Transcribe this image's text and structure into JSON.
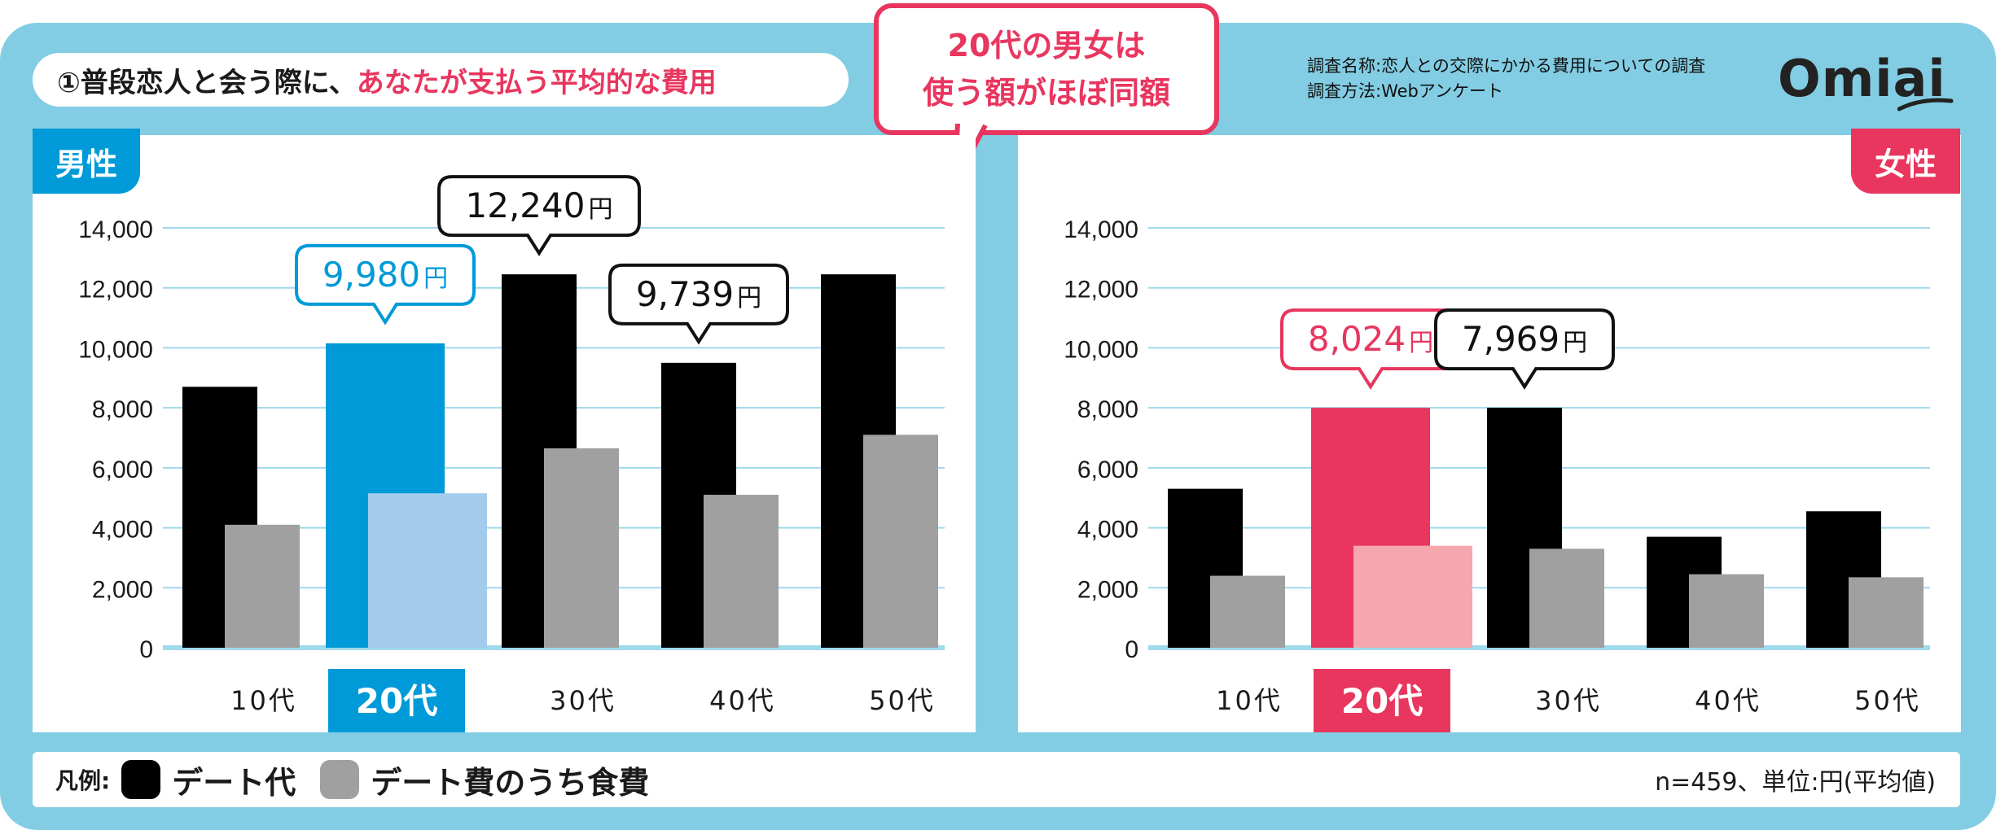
{
  "header": {
    "title_prefix": "①普段恋人と会う際に、",
    "title_highlight": "あなたが支払う平均的な費用",
    "callout_line1": "20代の男女は",
    "callout_line2": "使う額がほぼ同額",
    "survey_name": "調査名称:恋人との交際にかかる費用についての調査",
    "survey_method": "調査方法:Webアンケート",
    "logo": "Omiai"
  },
  "colors": {
    "frame": "#82cde3",
    "male_accent": "#009ad8",
    "male_light": "#a3ccec",
    "female_accent": "#e8365f",
    "female_light": "#f5a7ad",
    "date_cost": "#000000",
    "food_cost": "#a0a0a0",
    "gridline": "#9fd9ea"
  },
  "legend": {
    "label": "凡例:",
    "items": [
      "デート代",
      "デート費のうち食費"
    ],
    "note": "n=459、単位:円(平均値)"
  },
  "chart_data": [
    {
      "type": "bar",
      "title": "男性",
      "categories": [
        "10代",
        "20代",
        "30代",
        "40代",
        "50代"
      ],
      "highlight_category": "20代",
      "series": [
        {
          "name": "デート代",
          "values": [
            8700,
            10150,
            12450,
            9500,
            12450
          ]
        },
        {
          "name": "デート費のうち食費",
          "values": [
            4100,
            5150,
            6650,
            5100,
            7100
          ]
        }
      ],
      "ylim": [
        0,
        14000
      ],
      "yticks": [
        "0",
        "2,000",
        "4,000",
        "6,000",
        "8,000",
        "10,000",
        "12,000",
        "14,000"
      ],
      "annotations": [
        {
          "category": "20代",
          "number": "9,980",
          "unit": "円",
          "highlight": true
        },
        {
          "category": "30代",
          "number": "12,240",
          "unit": "円",
          "highlight": false
        },
        {
          "category": "40代",
          "number": "9,739",
          "unit": "円",
          "highlight": false
        }
      ]
    },
    {
      "type": "bar",
      "title": "女性",
      "categories": [
        "10代",
        "20代",
        "30代",
        "40代",
        "50代"
      ],
      "highlight_category": "20代",
      "series": [
        {
          "name": "デート代",
          "values": [
            5300,
            8000,
            8000,
            3700,
            4550
          ]
        },
        {
          "name": "デート費のうち食費",
          "values": [
            2400,
            3400,
            3300,
            2450,
            2350
          ]
        }
      ],
      "ylim": [
        0,
        14000
      ],
      "yticks": [
        "0",
        "2,000",
        "4,000",
        "6,000",
        "8,000",
        "10,000",
        "12,000",
        "14,000"
      ],
      "annotations": [
        {
          "category": "20代",
          "number": "8,024",
          "unit": "円",
          "highlight": true
        },
        {
          "category": "30代",
          "number": "7,969",
          "unit": "円",
          "highlight": false
        }
      ]
    }
  ]
}
